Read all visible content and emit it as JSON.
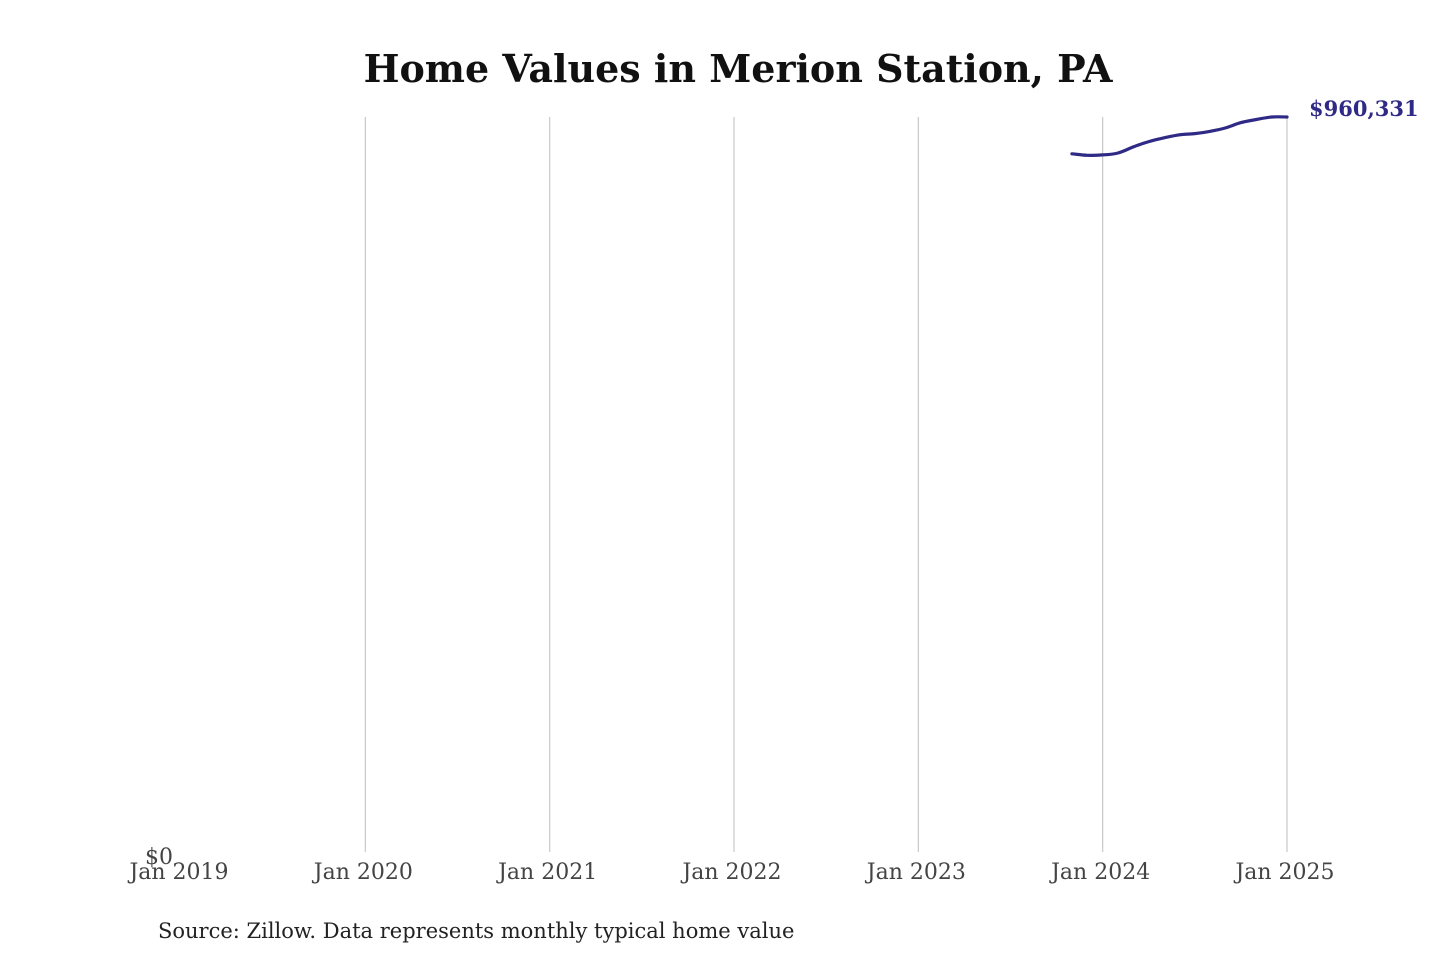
{
  "chart_data": {
    "type": "line",
    "title": "Home Values in Merion Station, PA",
    "xlabel": "",
    "ylabel": "",
    "x_ticks": [
      "Jan 2019",
      "Jan 2020",
      "Jan 2021",
      "Jan 2022",
      "Jan 2023",
      "Jan 2024",
      "Jan 2025"
    ],
    "y_tick_label": "$0",
    "ylim": [
      0,
      960331
    ],
    "grid": "vertical",
    "series": [
      {
        "color": "#2e2a86",
        "x": [
          "2023-11",
          "2023-12",
          "2024-01",
          "2024-02",
          "2024-03",
          "2024-04",
          "2024-05",
          "2024-06",
          "2024-07",
          "2024-08",
          "2024-09",
          "2024-10",
          "2024-11",
          "2024-12",
          "2025-01"
        ],
        "values": [
          912000,
          910000,
          910500,
          913000,
          921000,
          928000,
          933000,
          937000,
          938500,
          941500,
          946000,
          953000,
          957000,
          960331,
          960331
        ]
      }
    ],
    "end_label": "$960,331",
    "source": "Source: Zillow. Data represents monthly typical home value"
  }
}
